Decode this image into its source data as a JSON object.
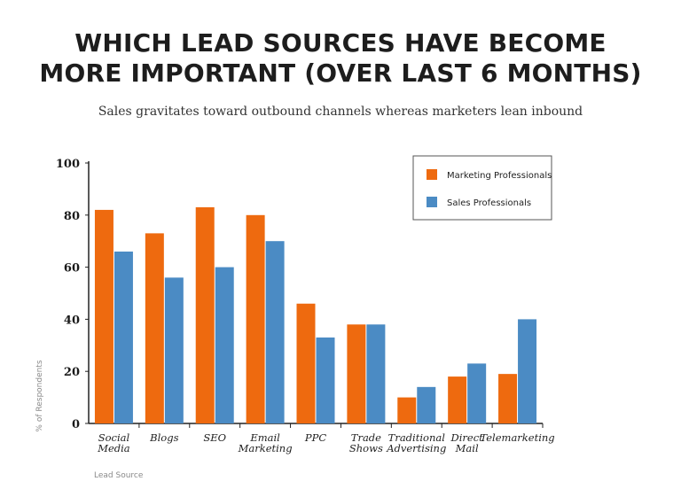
{
  "chart_data": {
    "type": "bar",
    "title_lines": [
      "WHICH LEAD SOURCES HAVE BECOME",
      "MORE IMPORTANT (OVER LAST 6 MONTHS)"
    ],
    "subtitle": "Sales gravitates toward outbound channels whereas marketers lean inbound",
    "xlabel": "Lead Source",
    "ylabel": "% of Respondents",
    "ylim": [
      0,
      100
    ],
    "yticks": [
      0,
      20,
      40,
      60,
      80,
      100
    ],
    "categories": [
      [
        "Social",
        "Media"
      ],
      [
        "Blogs"
      ],
      [
        "SEO"
      ],
      [
        "Email",
        "Marketing"
      ],
      [
        "PPC"
      ],
      [
        "Trade",
        "Shows"
      ],
      [
        "Traditional",
        "Advertising"
      ],
      [
        "Direct",
        "Mail"
      ],
      [
        "Telemarketing"
      ]
    ],
    "series": [
      {
        "name": "Marketing Professionals",
        "color": "#ee6a0f",
        "values": [
          82,
          73,
          83,
          80,
          46,
          38,
          10,
          18,
          19
        ]
      },
      {
        "name": "Sales Professionals",
        "color": "#4b8bc4",
        "values": [
          66,
          56,
          60,
          70,
          33,
          38,
          14,
          23,
          40
        ]
      }
    ],
    "legend_position": "top-right",
    "grid": false
  }
}
